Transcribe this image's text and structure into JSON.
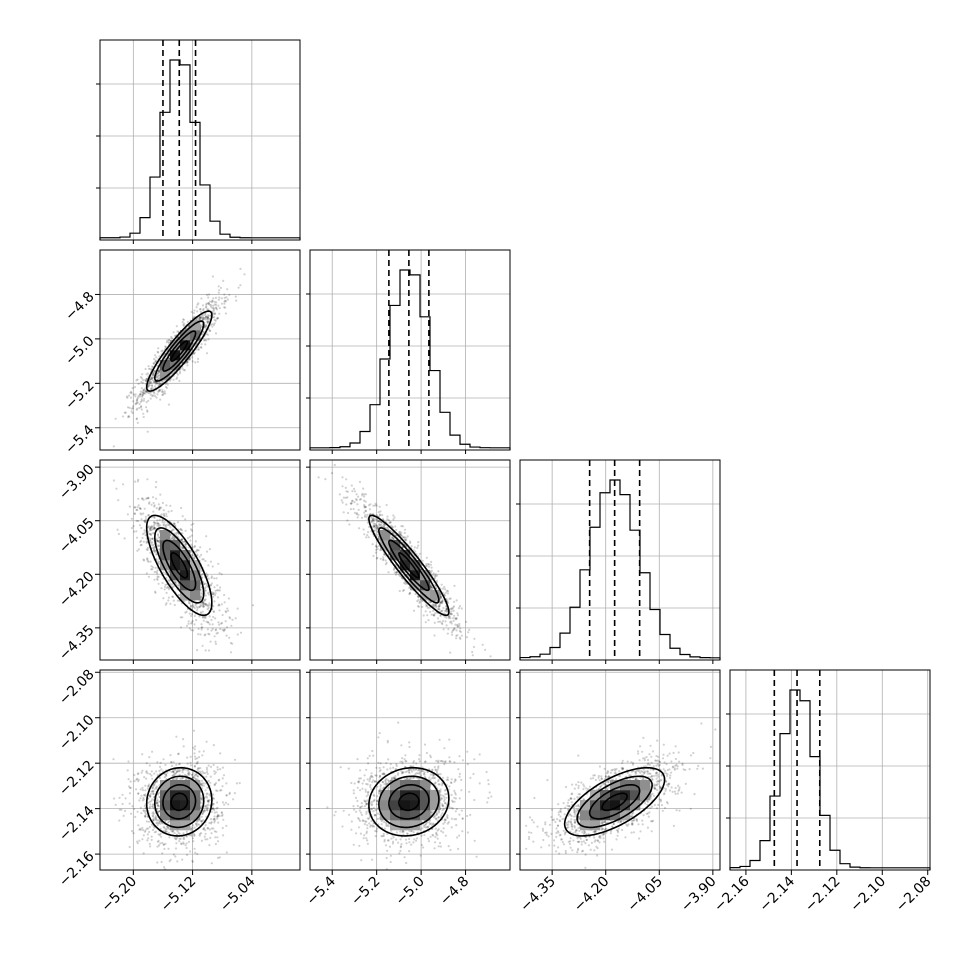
{
  "chart_data": {
    "type": "corner",
    "parameters": [
      {
        "ticks": [
          -5.2,
          -5.12,
          -5.04
        ],
        "tick_labels": [
          "−5.20",
          "−5.12",
          "−5.04"
        ],
        "range": [
          -5.245,
          -4.975
        ],
        "mean": -5.138,
        "std": 0.022,
        "quantiles": [
          -5.16,
          -5.138,
          -5.116
        ]
      },
      {
        "ticks": [
          -5.4,
          -5.2,
          -5.0,
          -4.8
        ],
        "tick_labels": [
          "−5.4",
          "−5.2",
          "−5.0",
          "−4.8"
        ],
        "range": [
          -5.5,
          -4.6
        ],
        "mean": -5.055,
        "std": 0.09,
        "quantiles": [
          -5.145,
          -5.055,
          -4.965
        ]
      },
      {
        "ticks": [
          -4.35,
          -4.2,
          -4.05,
          -3.9
        ],
        "tick_labels": [
          "−4.35",
          "−4.20",
          "−4.05",
          "−3.90"
        ],
        "range": [
          -4.44,
          -3.88
        ],
        "mean": -4.175,
        "std": 0.07,
        "quantiles": [
          -4.245,
          -4.175,
          -4.105
        ]
      },
      {
        "ticks": [
          -2.16,
          -2.14,
          -2.12,
          -2.1,
          -2.08
        ],
        "tick_labels": [
          "−2.16",
          "−2.14",
          "−2.12",
          "−2.10",
          "−2.08"
        ],
        "range": [
          -2.167,
          -2.079
        ],
        "mean": -2.137,
        "std": 0.0075,
        "quantiles": [
          -2.1475,
          -2.1375,
          -2.1275
        ]
      }
    ],
    "correlations": [
      [
        1.0,
        0.9,
        -0.75,
        0.05
      ],
      [
        0.9,
        1.0,
        -0.93,
        0.1
      ],
      [
        -0.75,
        -0.93,
        1.0,
        0.65
      ],
      [
        0.05,
        0.1,
        0.65,
        1.0
      ]
    ],
    "histogram_bins": 20,
    "contour_levels": [
      0.5,
      1.0,
      1.5,
      2.0
    ],
    "grid": true
  }
}
